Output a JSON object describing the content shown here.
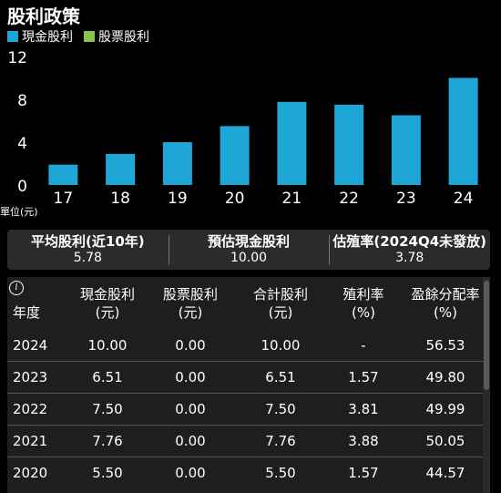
{
  "header": {
    "title": "股利政策"
  },
  "colors": {
    "cash": "#1ea7d6",
    "stock": "#8bc34a",
    "axis_text": "#ffffff",
    "background": "#000000"
  },
  "chart_data": {
    "type": "bar",
    "categories": [
      "17",
      "18",
      "19",
      "20",
      "21",
      "22",
      "23",
      "24"
    ],
    "series": [
      {
        "name": "現金股利",
        "values": [
          1.9,
          2.9,
          4.0,
          5.5,
          7.76,
          7.5,
          6.51,
          10.0
        ]
      },
      {
        "name": "股票股利",
        "values": [
          0,
          0,
          0,
          0,
          0,
          0,
          0,
          0
        ]
      }
    ],
    "ylabel": "單位(元)",
    "ylim": [
      0,
      12
    ],
    "yticks": [
      "0",
      "4",
      "8",
      "12"
    ],
    "legend": "top-left"
  },
  "summary": [
    {
      "label": "平均股利(近10年)",
      "value": "5.78"
    },
    {
      "label": "預估現金股利",
      "value": "10.00"
    },
    {
      "label": "估殖率(2024Q4未發放)",
      "value": "3.78"
    }
  ],
  "table": {
    "info_icon": "i",
    "headers": [
      [
        "年度",
        ""
      ],
      [
        "現金股利",
        "(元)"
      ],
      [
        "股票股利",
        "(元)"
      ],
      [
        "合計股利",
        "(元)"
      ],
      [
        "殖利率",
        "(%)"
      ],
      [
        "盈餘分配率",
        "(%)"
      ]
    ],
    "rows": [
      [
        "2024",
        "10.00",
        "0.00",
        "10.00",
        "-",
        "56.53"
      ],
      [
        "2023",
        "6.51",
        "0.00",
        "6.51",
        "1.57",
        "49.80"
      ],
      [
        "2022",
        "7.50",
        "0.00",
        "7.50",
        "3.81",
        "49.99"
      ],
      [
        "2021",
        "7.76",
        "0.00",
        "7.76",
        "3.88",
        "50.05"
      ],
      [
        "2020",
        "5.50",
        "0.00",
        "5.50",
        "1.57",
        "44.57"
      ]
    ]
  }
}
